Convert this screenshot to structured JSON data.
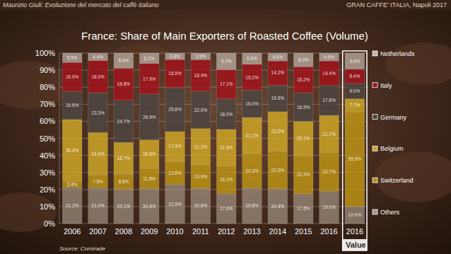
{
  "header": {
    "left": "Maurizio Giuli: Evoluzione del mercato del caffè italiano",
    "right": "GRAN CAFFE' ITALIA, Napoli 2017"
  },
  "chart_data": {
    "type": "bar",
    "title": "France: Share of Main Exporters of Roasted Coffee (Volume)",
    "source": "Source: Comtrade",
    "stacked": true,
    "grid": true,
    "legend": "right",
    "data_labels": true,
    "categories": [
      "2006",
      "2007",
      "2008",
      "2009",
      "2010",
      "2011",
      "2012",
      "2013",
      "2014",
      "2015",
      "2016",
      "2016 Value"
    ],
    "ylim": [
      0,
      100
    ],
    "yticks": [
      {
        "value": 0,
        "label": "0%"
      },
      {
        "value": 10,
        "label": "10%"
      },
      {
        "value": 20,
        "label": "20%"
      },
      {
        "value": 30,
        "label": "30%"
      },
      {
        "value": 40,
        "label": "40%"
      },
      {
        "value": 50,
        "label": "50%"
      },
      {
        "value": 60,
        "label": "60%"
      },
      {
        "value": 70,
        "label": "70%"
      },
      {
        "value": 80,
        "label": "80%"
      },
      {
        "value": 90,
        "label": "90%"
      },
      {
        "value": 100,
        "label": "100%"
      }
    ],
    "series": [
      {
        "name": "Others",
        "color": "#a39382",
        "values": [
          21.2,
          21.0,
          20.1,
          20.4,
          22.9,
          20.6,
          17.6,
          20.8,
          20.4,
          17.5,
          19.0,
          10.0
        ],
        "value_labels": [
          "21.2%",
          "21.0%",
          "20.1%",
          "20.4%",
          "22.9%",
          "20.6%",
          "17.6%",
          "20.8%",
          "20.4%",
          "17.5%",
          "19.0%",
          "10.0%"
        ]
      },
      {
        "name": "Switzerland",
        "color": "#b88f17",
        "values": [
          3.4,
          7.5,
          8.8,
          11.8,
          13.6,
          13.9,
          16.1,
          20.3,
          22.0,
          22.3,
          22.7,
          55.5
        ],
        "value_labels": [
          "3.4%",
          "7.5%",
          "8.8%",
          "11.8%",
          "13.6%",
          "13.9%",
          "16.1%",
          "20.3%",
          "22.0%",
          "22.3%",
          "22.7%",
          "55.5%"
        ]
      },
      {
        "name": "Belgium",
        "color": "#c9a227",
        "values": [
          36.4,
          24.9,
          18.7,
          16.9,
          17.4,
          21.2,
          21.5,
          21.1,
          23.2,
          20.1,
          21.7,
          7.7
        ],
        "value_labels": [
          "36.4%",
          "24.9%",
          "18.7%",
          "16.9%",
          "17.4%",
          "21.2%",
          "21.5%",
          "21.1%",
          "23.2%",
          "20.1%",
          "21.7%",
          "7.7%"
        ]
      },
      {
        "name": "Germany",
        "color": "#4d4540",
        "values": [
          16.6,
          23.3,
          24.7,
          26.9,
          25.8,
          22.0,
          18.0,
          16.0,
          15.6,
          16.9,
          17.6,
          9.0
        ],
        "value_labels": [
          "16.6%",
          "23.3%",
          "24.7%",
          "26.9%",
          "25.8%",
          "22.0%",
          "18.0%",
          "16.0%",
          "15.6%",
          "16.9%",
          "17.6%",
          "9.0%"
        ]
      },
      {
        "name": "Italy",
        "color": "#9e141b",
        "values": [
          16.9,
          18.9,
          18.8,
          17.9,
          16.5,
          18.4,
          17.1,
          15.2,
          14.2,
          15.2,
          14.4,
          8.4
        ],
        "value_labels": [
          "16.9%",
          "18.9%",
          "18.8%",
          "17.9%",
          "16.5%",
          "18.4%",
          "17.1%",
          "15.2%",
          "14.2%",
          "15.2%",
          "14.4%",
          "8.4%"
        ]
      },
      {
        "name": "Netherlands",
        "color": "#c4b6ac",
        "values": [
          5.5,
          4.4,
          8.9,
          6.1,
          3.8,
          3.9,
          9.7,
          6.6,
          4.6,
          8.0,
          4.6,
          9.4
        ],
        "value_labels": [
          "5.5%",
          "4.4%",
          "8.9%",
          "6.1%",
          "3.8%",
          "3.9%",
          "9.7%",
          "6.6%",
          "4.6%",
          "8.0%",
          "4.6%",
          "9.4%"
        ]
      }
    ]
  }
}
